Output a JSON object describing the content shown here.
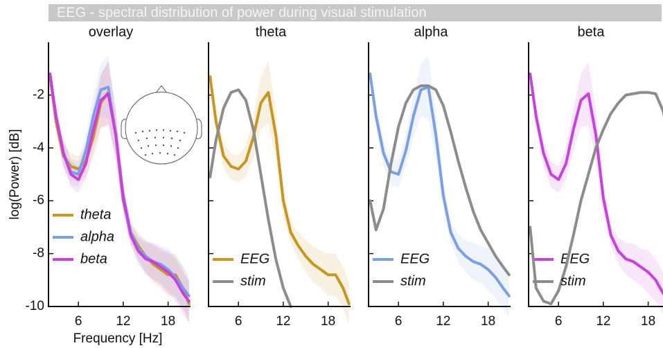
{
  "title": "EEG - spectral distribution of power during visual stimulation",
  "chart_data": [
    {
      "type": "line",
      "title": "overlay",
      "x_label": "Frequency [Hz]",
      "y_label": "log(Power) [dB]",
      "x": [
        2.2,
        3,
        4,
        5,
        6,
        7,
        8,
        9,
        10,
        11,
        12,
        13,
        14,
        15,
        16,
        17,
        18,
        19,
        20,
        20.8
      ],
      "xlim": [
        2,
        21
      ],
      "xticks": [
        6,
        12,
        18
      ],
      "ylim": [
        -10,
        0
      ],
      "yticks": [
        -2,
        -4,
        -6,
        -8,
        -10
      ],
      "legend": "lower left",
      "series": [
        {
          "name": "theta",
          "color": "#c8961e",
          "values": [
            -1.3,
            -3.0,
            -4.3,
            -4.7,
            -4.8,
            -4.5,
            -3.6,
            -2.3,
            -1.9,
            -3.5,
            -6.0,
            -7.2,
            -7.7,
            -8.1,
            -8.4,
            -8.6,
            -8.8,
            -8.8,
            -9.3,
            -9.9
          ],
          "error": [
            0.2,
            0.4,
            0.5,
            0.5,
            0.5,
            0.6,
            0.8,
            1.0,
            1.2,
            0.9,
            0.5,
            0.4,
            0.5,
            0.6,
            0.7,
            0.7,
            0.8,
            0.8,
            0.8,
            0.8
          ]
        },
        {
          "name": "alpha",
          "color": "#7b9fe6",
          "values": [
            -1.2,
            -2.8,
            -4.2,
            -4.9,
            -5.0,
            -4.1,
            -2.8,
            -1.8,
            -1.7,
            -3.5,
            -5.8,
            -7.2,
            -7.8,
            -8.1,
            -8.3,
            -8.4,
            -8.6,
            -8.9,
            -9.3,
            -9.6
          ],
          "error": [
            0.2,
            0.4,
            0.5,
            0.5,
            0.5,
            0.6,
            0.8,
            1.0,
            1.2,
            0.9,
            0.5,
            0.4,
            0.5,
            0.6,
            0.7,
            0.7,
            0.8,
            0.8,
            0.8,
            0.8
          ]
        },
        {
          "name": "beta",
          "color": "#c93fe0",
          "values": [
            -1.2,
            -2.8,
            -4.2,
            -5.0,
            -5.2,
            -4.6,
            -3.3,
            -2.2,
            -1.95,
            -3.5,
            -5.9,
            -7.3,
            -7.9,
            -8.2,
            -8.3,
            -8.5,
            -8.7,
            -9.0,
            -9.5,
            -9.8
          ],
          "error": [
            0.2,
            0.4,
            0.5,
            0.5,
            0.5,
            0.6,
            0.8,
            1.0,
            1.2,
            0.9,
            0.5,
            0.4,
            0.5,
            0.6,
            0.7,
            0.7,
            0.8,
            0.8,
            0.8,
            0.8
          ]
        }
      ]
    },
    {
      "type": "line",
      "title": "theta",
      "x": [
        2.2,
        3,
        4,
        5,
        6,
        7,
        8,
        9,
        10,
        11,
        12,
        13,
        14,
        15,
        16,
        17,
        18,
        19,
        20,
        20.8
      ],
      "xlim": [
        2,
        21
      ],
      "xticks": [
        6,
        12,
        18
      ],
      "legend": "lower left",
      "series": [
        {
          "name": "EEG",
          "color": "#c8961e",
          "values": [
            -1.3,
            -3.0,
            -4.3,
            -4.7,
            -4.8,
            -4.5,
            -3.6,
            -2.3,
            -1.9,
            -3.5,
            -6.0,
            -7.2,
            -7.7,
            -8.1,
            -8.4,
            -8.6,
            -8.8,
            -8.8,
            -9.3,
            -9.9
          ],
          "error": [
            0.2,
            0.4,
            0.5,
            0.5,
            0.5,
            0.6,
            0.8,
            1.0,
            1.2,
            0.9,
            0.5,
            0.4,
            0.5,
            0.6,
            0.7,
            0.7,
            0.8,
            0.8,
            0.8,
            0.8
          ]
        },
        {
          "name": "stim",
          "color": "#8c8c8c",
          "values": [
            -5.1,
            -3.7,
            -2.5,
            -1.9,
            -1.8,
            -2.2,
            -3.3,
            -5.0,
            -6.7,
            -8.2,
            -9.3,
            -10,
            null,
            null,
            null,
            null,
            null,
            null,
            null,
            null
          ]
        }
      ]
    },
    {
      "type": "line",
      "title": "alpha",
      "x": [
        2.2,
        3,
        4,
        5,
        6,
        7,
        8,
        9,
        10,
        11,
        12,
        13,
        14,
        15,
        16,
        17,
        18,
        19,
        20,
        20.8
      ],
      "xlim": [
        2,
        21
      ],
      "xticks": [
        6,
        12,
        18
      ],
      "legend": "lower left",
      "series": [
        {
          "name": "EEG",
          "color": "#7b9fe6",
          "values": [
            -1.2,
            -2.8,
            -4.2,
            -4.9,
            -5.0,
            -4.1,
            -2.8,
            -1.8,
            -1.7,
            -3.5,
            -5.8,
            -7.2,
            -7.8,
            -8.1,
            -8.3,
            -8.4,
            -8.6,
            -8.9,
            -9.3,
            -9.6
          ],
          "error": [
            0.2,
            0.4,
            0.5,
            0.5,
            0.5,
            0.6,
            0.8,
            1.0,
            1.2,
            0.9,
            0.5,
            0.4,
            0.5,
            0.6,
            0.7,
            0.7,
            0.8,
            0.8,
            0.8,
            0.8
          ]
        },
        {
          "name": "stim",
          "color": "#8c8c8c",
          "values": [
            -6.0,
            -7.1,
            -6.3,
            -4.6,
            -3.2,
            -2.3,
            -1.8,
            -1.65,
            -1.65,
            -1.8,
            -2.4,
            -3.4,
            -4.5,
            -5.5,
            -6.4,
            -7.1,
            -7.6,
            -8.1,
            -8.5,
            -8.8
          ]
        }
      ]
    },
    {
      "type": "line",
      "title": "beta",
      "x": [
        2.2,
        3,
        4,
        5,
        6,
        7,
        8,
        9,
        10,
        11,
        12,
        13,
        14,
        15,
        16,
        17,
        18,
        19,
        20,
        20.8
      ],
      "xlim": [
        2,
        21
      ],
      "xticks": [
        6,
        12,
        18
      ],
      "legend": "lower left",
      "series": [
        {
          "name": "EEG",
          "color": "#c93fe0",
          "values": [
            -1.2,
            -2.8,
            -4.2,
            -5.0,
            -5.2,
            -4.6,
            -3.3,
            -2.2,
            -1.95,
            -3.5,
            -5.9,
            -7.3,
            -7.9,
            -8.2,
            -8.3,
            -8.5,
            -8.7,
            -9.0,
            -9.5,
            -9.8
          ],
          "error": [
            0.2,
            0.4,
            0.5,
            0.5,
            0.5,
            0.6,
            0.8,
            1.0,
            1.2,
            0.9,
            0.5,
            0.4,
            0.5,
            0.6,
            0.7,
            0.7,
            0.8,
            0.8,
            0.8,
            0.8
          ]
        },
        {
          "name": "stim",
          "color": "#8c8c8c",
          "values": [
            -7.0,
            -9.3,
            -9.8,
            -9.9,
            -9.4,
            -8.5,
            -7.3,
            -6.0,
            -5.0,
            -4.0,
            -3.3,
            -2.7,
            -2.3,
            -2.0,
            -1.95,
            -1.9,
            -1.9,
            -1.95,
            -2.6,
            -3.8
          ]
        }
      ]
    }
  ]
}
